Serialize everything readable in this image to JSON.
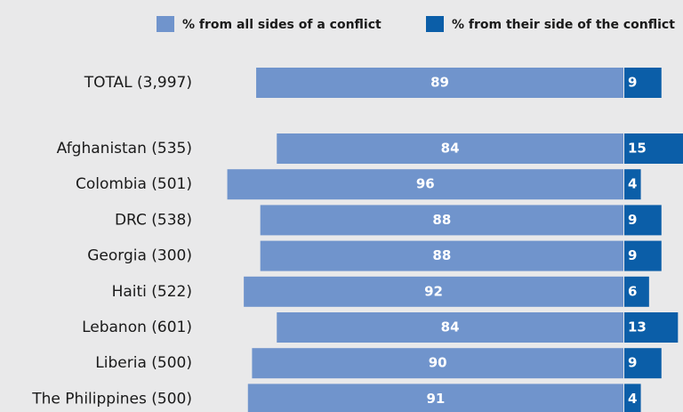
{
  "chart_data": {
    "type": "bar",
    "categories": [
      "TOTAL (3,997)",
      "Afghanistan (535)",
      "Colombia (501)",
      "DRC (538)",
      "Georgia (300)",
      "Haiti (522)",
      "Lebanon (601)",
      "Liberia (500)",
      "The Philippines (500)"
    ],
    "series": [
      {
        "name": "% from all sides of a conflict",
        "color": "#7094cc",
        "values": [
          89,
          84,
          96,
          88,
          88,
          92,
          84,
          90,
          91
        ]
      },
      {
        "name": "% from their side of the conflict",
        "color": "#0b5ea8",
        "values": [
          9,
          15,
          4,
          9,
          9,
          6,
          13,
          9,
          4
        ]
      }
    ]
  }
}
